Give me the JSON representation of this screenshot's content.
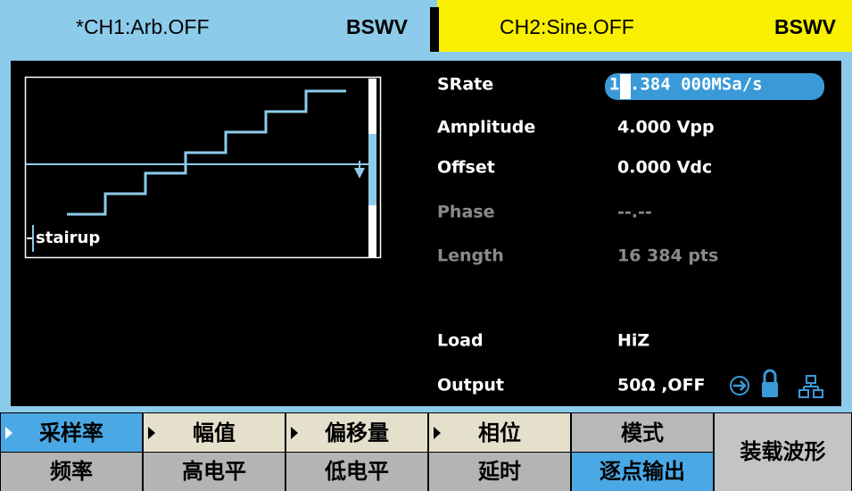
{
  "tabs": [
    {
      "name": "*CH1:Arb.OFF",
      "mode": "BSWV"
    },
    {
      "name": "CH2:Sine.OFF",
      "mode": "BSWV"
    }
  ],
  "waveform": {
    "name": "stairup"
  },
  "params": [
    {
      "label": "SRate",
      "value": "16.384 000MSa/s"
    },
    {
      "label": "Amplitude",
      "value": "4.000 Vpp"
    },
    {
      "label": "Offset",
      "value": "0.000 Vdc"
    },
    {
      "label": "Phase",
      "value": "--.--"
    },
    {
      "label": "Length",
      "value": "16 384 pts"
    },
    {
      "label": "Load",
      "value": "HiZ"
    },
    {
      "label": "Output",
      "value": "50Ω ,OFF"
    }
  ],
  "softkeys": [
    {
      "top": "采样率",
      "bottom": "频率"
    },
    {
      "top": "幅值",
      "bottom": "高电平"
    },
    {
      "top": "偏移量",
      "bottom": "低电平"
    },
    {
      "top": "相位",
      "bottom": "延时"
    },
    {
      "top": "模式",
      "bottom": "逐点输出"
    },
    {
      "label": "装载波形"
    }
  ]
}
